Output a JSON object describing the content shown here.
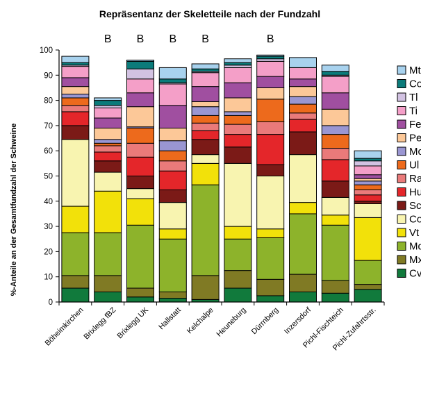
{
  "chart_data": {
    "type": "bar",
    "stacked": true,
    "title": "Repräsentanz der Skeletteile nach der Fundzahl",
    "ylabel": "%-Anteile an der Gesamtfundzahl der Schweine",
    "ylim": [
      0,
      100
    ],
    "yticks": [
      0,
      10,
      20,
      30,
      40,
      50,
      60,
      70,
      80,
      90,
      100
    ],
    "grid": false,
    "legend_position": "right",
    "categories": [
      "Böheimkirchen",
      "Brixlegg fBZ",
      "Brixlegg UK",
      "Hallstatt",
      "Kelchalpe",
      "Heuneburg",
      "Dürrnberg",
      "Inzersdorf",
      "Pichl-Fischteich",
      "Pichl-Zufahrtsstr."
    ],
    "annotations": [
      "",
      "B",
      "B",
      "B",
      "B",
      "",
      "B",
      "",
      "",
      ""
    ],
    "series": [
      {
        "name": "Cv",
        "color": "#117a3c",
        "values": [
          5.5,
          4.0,
          2.0,
          1.5,
          1.0,
          5.5,
          2.5,
          4.0,
          3.5,
          5.0
        ]
      },
      {
        "name": "Mx",
        "color": "#807a24",
        "values": [
          5.0,
          6.5,
          3.5,
          2.5,
          9.5,
          7.0,
          6.5,
          7.0,
          5.0,
          2.0
        ]
      },
      {
        "name": "Md",
        "color": "#8db32b",
        "values": [
          17.0,
          17.0,
          25.0,
          21.0,
          36.0,
          12.5,
          16.5,
          24.0,
          22.0,
          9.5
        ]
      },
      {
        "name": "Vt",
        "color": "#f2e10a",
        "values": [
          10.5,
          16.5,
          10.5,
          4.0,
          8.5,
          5.0,
          3.5,
          4.5,
          4.0,
          17.0
        ]
      },
      {
        "name": "Cos",
        "color": "#f8f4b0",
        "values": [
          26.5,
          7.5,
          4.0,
          10.5,
          3.5,
          25.0,
          21.0,
          19.0,
          7.0,
          5.5
        ]
      },
      {
        "name": "Sc",
        "color": "#7b1a17",
        "values": [
          5.5,
          4.5,
          5.0,
          5.0,
          6.0,
          6.5,
          4.5,
          9.0,
          6.5,
          1.0
        ]
      },
      {
        "name": "Hu",
        "color": "#e4262a",
        "values": [
          5.5,
          3.5,
          7.5,
          7.5,
          3.5,
          5.0,
          12.0,
          5.0,
          8.5,
          2.5
        ]
      },
      {
        "name": "Ra",
        "color": "#ea7a7a",
        "values": [
          2.5,
          2.5,
          5.5,
          4.0,
          3.0,
          4.0,
          5.0,
          2.5,
          4.5,
          2.0
        ]
      },
      {
        "name": "Ul",
        "color": "#ed6a1c",
        "values": [
          3.0,
          1.0,
          6.0,
          4.0,
          3.0,
          3.5,
          9.0,
          3.5,
          5.5,
          2.0
        ]
      },
      {
        "name": "Mc",
        "color": "#9a96d2",
        "values": [
          1.5,
          1.5,
          0.5,
          4.0,
          3.5,
          1.5,
          0.0,
          3.0,
          3.5,
          1.5
        ]
      },
      {
        "name": "Pe",
        "color": "#fcc898",
        "values": [
          3.0,
          4.5,
          8.0,
          5.0,
          2.0,
          5.5,
          4.5,
          4.0,
          6.5,
          1.0
        ]
      },
      {
        "name": "Fe",
        "color": "#a04fa0",
        "values": [
          3.5,
          4.0,
          5.5,
          9.0,
          6.0,
          6.0,
          4.5,
          3.0,
          6.5,
          1.5
        ]
      },
      {
        "name": "Ti",
        "color": "#f49fc8",
        "values": [
          4.5,
          4.0,
          5.5,
          8.5,
          5.5,
          6.0,
          6.0,
          4.5,
          6.5,
          3.5
        ]
      },
      {
        "name": "Tl",
        "color": "#d2c2e2",
        "values": [
          0.5,
          1.0,
          4.0,
          0.5,
          0.5,
          1.0,
          1.0,
          0.0,
          0.5,
          2.0
        ]
      },
      {
        "name": "Co",
        "color": "#0b7b7a",
        "values": [
          1.0,
          2.0,
          3.0,
          1.5,
          1.0,
          1.0,
          1.0,
          0.0,
          1.5,
          1.0
        ]
      },
      {
        "name": "Mt",
        "color": "#a8d2ee",
        "values": [
          2.5,
          1.0,
          0.5,
          4.5,
          2.0,
          1.5,
          0.5,
          4.0,
          2.5,
          3.0
        ]
      }
    ]
  }
}
